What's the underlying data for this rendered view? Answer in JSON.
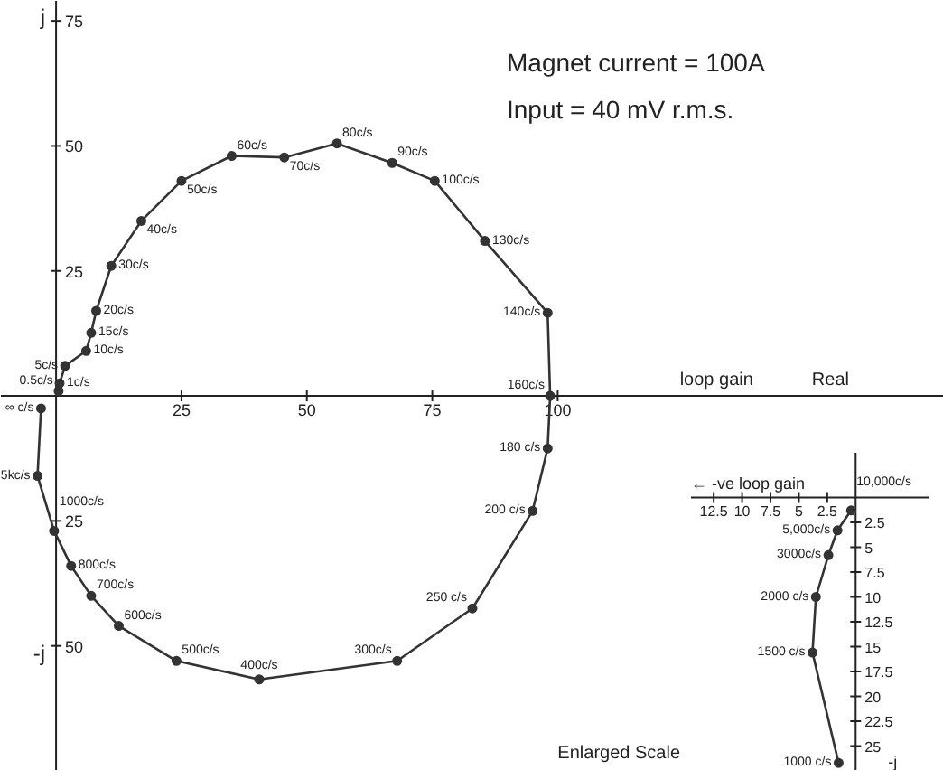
{
  "chart_data": [
    {
      "type": "line",
      "title": "Magnet current = 100A",
      "subtitle": "Input = 40 mV r.m.s.",
      "xlabel": "loop gain",
      "ylabel": "j",
      "marker": "circle",
      "xlim": [
        -11,
        177
      ],
      "ylim": [
        -75,
        79
      ],
      "xticks": [
        25,
        50,
        75,
        100
      ],
      "yticks": [
        75,
        50,
        25,
        {
          "value": -25,
          "label": "25"
        },
        {
          "value": -50,
          "label": "50"
        }
      ],
      "series": [
        {
          "color": "#333333",
          "x": [
            0.5,
            0.7,
            1.8,
            6,
            7,
            8,
            11,
            17,
            25,
            35,
            45.5,
            56,
            67,
            75.5,
            85.5,
            98,
            98.5,
            98,
            95,
            83,
            68,
            40.5,
            24,
            12.5,
            7,
            3,
            -0.4,
            -3.7,
            -3
          ],
          "values": [
            1,
            2.5,
            6,
            9,
            12.6,
            17,
            26,
            35,
            43,
            48,
            47.7,
            50.5,
            46.6,
            43,
            31,
            16.6,
            0,
            -10.5,
            -23,
            -42.5,
            -53,
            -56.7,
            -53,
            -46,
            -40,
            -34,
            -27,
            -16,
            -2.5
          ]
        }
      ],
      "annotations": [
        "Real",
        "-j",
        {
          "text": "0.5c/s",
          "x": 0.5,
          "y": 1
        },
        {
          "text": "1c/s",
          "x": 0.7,
          "y": 2.5
        },
        {
          "text": "5c/s",
          "x": 1.8,
          "y": 6
        },
        {
          "text": "10c/s",
          "x": 6,
          "y": 9
        },
        {
          "text": "15c/s",
          "x": 7,
          "y": 12.6
        },
        {
          "text": "20c/s",
          "x": 8,
          "y": 17
        },
        {
          "text": "30c/s",
          "x": 11,
          "y": 26
        },
        {
          "text": "40c/s",
          "x": 17,
          "y": 35
        },
        {
          "text": "50c/s",
          "x": 25,
          "y": 43
        },
        {
          "text": "60c/s",
          "x": 35,
          "y": 48
        },
        {
          "text": "70c/s",
          "x": 45.5,
          "y": 47.7
        },
        {
          "text": "80c/s",
          "x": 56,
          "y": 50.5
        },
        {
          "text": "90c/s",
          "x": 67,
          "y": 46.6
        },
        {
          "text": "100c/s",
          "x": 75.5,
          "y": 43
        },
        {
          "text": "130c/s",
          "x": 85.5,
          "y": 31
        },
        {
          "text": "140c/s",
          "x": 98,
          "y": 16.6
        },
        {
          "text": "160c/s",
          "x": 98.5,
          "y": 0
        },
        {
          "text": "180 c/s",
          "x": 98,
          "y": -10.5
        },
        {
          "text": "200 c/s",
          "x": 95,
          "y": -23
        },
        {
          "text": "250 c/s",
          "x": 83,
          "y": -42.5
        },
        {
          "text": "300c/s",
          "x": 68,
          "y": -53
        },
        {
          "text": "400c/s",
          "x": 40.5,
          "y": -56.7
        },
        {
          "text": "500c/s",
          "x": 24,
          "y": -53
        },
        {
          "text": "600c/s",
          "x": 12.5,
          "y": -46
        },
        {
          "text": "700c/s",
          "x": 7,
          "y": -40
        },
        {
          "text": "800c/s",
          "x": 3,
          "y": -34
        },
        {
          "text": "1000c/s",
          "x": -0.4,
          "y": -27
        },
        {
          "text": "5kc/s",
          "x": -3.7,
          "y": -16
        },
        {
          "text": "∞ c/s",
          "x": -3,
          "y": -2.5
        }
      ]
    },
    {
      "type": "line",
      "xlabel": "← -ve loop gain",
      "ylabel": "-j",
      "marker": "circle",
      "xlim": [
        -14.5,
        6.5
      ],
      "ylim": [
        -27.5,
        4.5
      ],
      "xticks": [
        {
          "value": -12.5,
          "label": "12.5"
        },
        {
          "value": -10,
          "label": "10"
        },
        {
          "value": -7.5,
          "label": "7.5"
        },
        {
          "value": -5,
          "label": "5"
        },
        {
          "value": -2.5,
          "label": "2.5"
        }
      ],
      "yticks": [
        {
          "value": -2.5,
          "label": "2.5"
        },
        {
          "value": -5,
          "label": "5"
        },
        {
          "value": -7.5,
          "label": "7.5"
        },
        {
          "value": -10,
          "label": "10"
        },
        {
          "value": -12.5,
          "label": "12.5"
        },
        {
          "value": -15,
          "label": "15"
        },
        {
          "value": -17.5,
          "label": "17.5"
        },
        {
          "value": -20,
          "label": "20"
        },
        {
          "value": -22.5,
          "label": "22.5"
        },
        {
          "value": -25,
          "label": "25"
        }
      ],
      "series": [
        {
          "color": "#333333",
          "x": [
            -0.4,
            -1.6,
            -2.4,
            -3.5,
            -3.8,
            -1.5
          ],
          "values": [
            -1.3,
            -3.3,
            -5.8,
            -10,
            -15.6,
            -26.7
          ]
        }
      ],
      "annotations": [
        "Enlarged Scale",
        {
          "text": "10,000c/s",
          "x": -0.4,
          "y": -1.3
        },
        {
          "text": "5,000c/s",
          "x": -1.6,
          "y": -3.3
        },
        {
          "text": "3000c/s",
          "x": -2.4,
          "y": -5.8
        },
        {
          "text": "2000 c/s",
          "x": -3.5,
          "y": -10
        },
        {
          "text": "1500 c/s",
          "x": -3.8,
          "y": -15.6
        },
        {
          "text": "1000 c/s",
          "x": -1.5,
          "y": -26.7
        }
      ]
    }
  ]
}
